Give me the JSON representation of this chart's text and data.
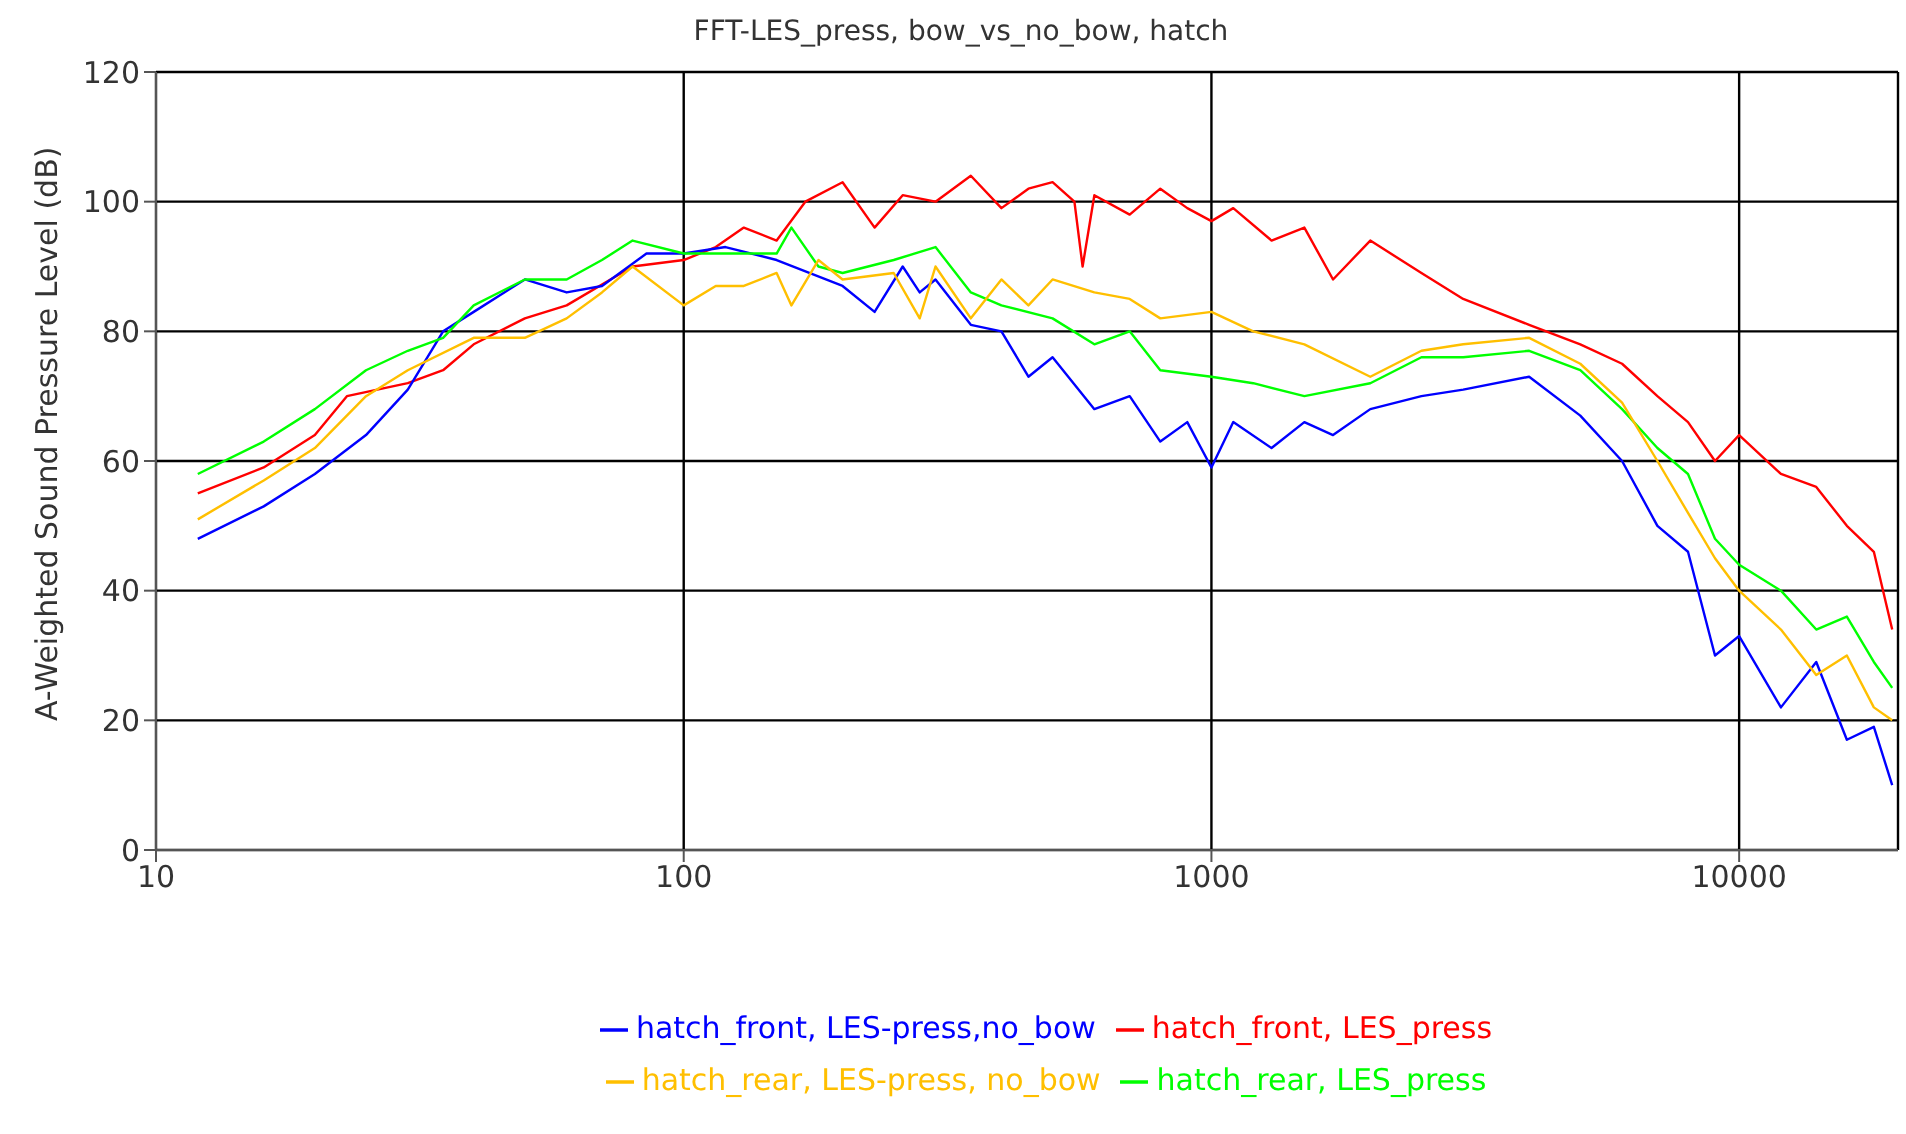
{
  "chart_data": {
    "type": "line",
    "title": "FFT-LES_press, bow_vs_no_bow, hatch",
    "ylabel": "A-Weighted Sound Pressure Level (dB)",
    "log": "x",
    "xlim": [
      10,
      20000
    ],
    "xticks": [
      10,
      100,
      1000,
      10000
    ],
    "ylim": [
      0,
      120
    ],
    "yticks": [
      0,
      20,
      40,
      60,
      80,
      100,
      120
    ],
    "grid": true,
    "legend": "bottom",
    "marker": "none",
    "line_style": "solid",
    "series": [
      {
        "name": "hatch_front, LES_press",
        "color": "#ff0000",
        "x": [
          12,
          16,
          20,
          23,
          30,
          35,
          40,
          50,
          60,
          80,
          100,
          115,
          130,
          150,
          170,
          200,
          230,
          260,
          300,
          350,
          400,
          450,
          500,
          550,
          570,
          600,
          700,
          800,
          900,
          1000,
          1100,
          1300,
          1500,
          1700,
          2000,
          2500,
          3000,
          4000,
          5000,
          6000,
          7000,
          8000,
          9000,
          10000,
          12000,
          14000,
          16000,
          18000,
          19500
        ],
        "values": [
          55,
          59,
          64,
          70,
          72,
          74,
          78,
          82,
          84,
          90,
          91,
          93,
          96,
          94,
          100,
          103,
          96,
          101,
          100,
          104,
          99,
          102,
          103,
          100,
          90,
          101,
          98,
          102,
          99,
          97,
          99,
          94,
          96,
          88,
          94,
          89,
          85,
          81,
          78,
          75,
          70,
          66,
          60,
          64,
          58,
          56,
          50,
          46,
          34
        ]
      },
      {
        "name": "hatch_front, LES-press,no_bow",
        "color": "#0000ff",
        "x": [
          12,
          16,
          20,
          25,
          30,
          35,
          40,
          50,
          60,
          70,
          85,
          100,
          120,
          150,
          200,
          230,
          260,
          280,
          300,
          350,
          400,
          450,
          500,
          600,
          700,
          800,
          900,
          1000,
          1100,
          1300,
          1500,
          1700,
          2000,
          2500,
          3000,
          4000,
          5000,
          6000,
          7000,
          8000,
          9000,
          10000,
          12000,
          14000,
          16000,
          18000,
          19500
        ],
        "values": [
          48,
          53,
          58,
          64,
          71,
          80,
          83,
          88,
          86,
          87,
          92,
          92,
          93,
          91,
          87,
          83,
          90,
          86,
          88,
          81,
          80,
          73,
          76,
          68,
          70,
          63,
          66,
          59,
          66,
          62,
          66,
          64,
          68,
          70,
          71,
          73,
          67,
          60,
          50,
          46,
          30,
          33,
          22,
          29,
          17,
          19,
          10
        ]
      },
      {
        "name": "hatch_rear, LES_press",
        "color": "#00ff00",
        "x": [
          12,
          16,
          20,
          25,
          30,
          35,
          40,
          50,
          60,
          70,
          80,
          100,
          120,
          150,
          160,
          180,
          200,
          250,
          300,
          350,
          400,
          500,
          600,
          700,
          800,
          1000,
          1200,
          1500,
          2000,
          2500,
          3000,
          4000,
          5000,
          6000,
          7000,
          8000,
          9000,
          10000,
          12000,
          14000,
          16000,
          18000,
          19500
        ],
        "values": [
          58,
          63,
          68,
          74,
          77,
          79,
          84,
          88,
          88,
          91,
          94,
          92,
          92,
          92,
          96,
          90,
          89,
          91,
          93,
          86,
          84,
          82,
          78,
          80,
          74,
          73,
          72,
          70,
          72,
          76,
          76,
          77,
          74,
          68,
          62,
          58,
          48,
          44,
          40,
          34,
          36,
          29,
          25
        ]
      },
      {
        "name": "hatch_rear, LES-press, no_bow",
        "color": "#ffbf00",
        "x": [
          12,
          16,
          20,
          25,
          30,
          40,
          50,
          60,
          70,
          80,
          100,
          115,
          130,
          150,
          160,
          180,
          200,
          250,
          280,
          300,
          350,
          400,
          450,
          500,
          600,
          700,
          800,
          1000,
          1200,
          1500,
          2000,
          2500,
          3000,
          4000,
          5000,
          6000,
          7000,
          8000,
          9000,
          10000,
          12000,
          14000,
          16000,
          18000,
          19500
        ],
        "values": [
          51,
          57,
          62,
          70,
          74,
          79,
          79,
          82,
          86,
          90,
          84,
          87,
          87,
          89,
          84,
          91,
          88,
          89,
          82,
          90,
          82,
          88,
          84,
          88,
          86,
          85,
          82,
          83,
          80,
          78,
          73,
          77,
          78,
          79,
          75,
          69,
          60,
          52,
          45,
          40,
          34,
          27,
          30,
          22,
          20
        ]
      }
    ]
  }
}
